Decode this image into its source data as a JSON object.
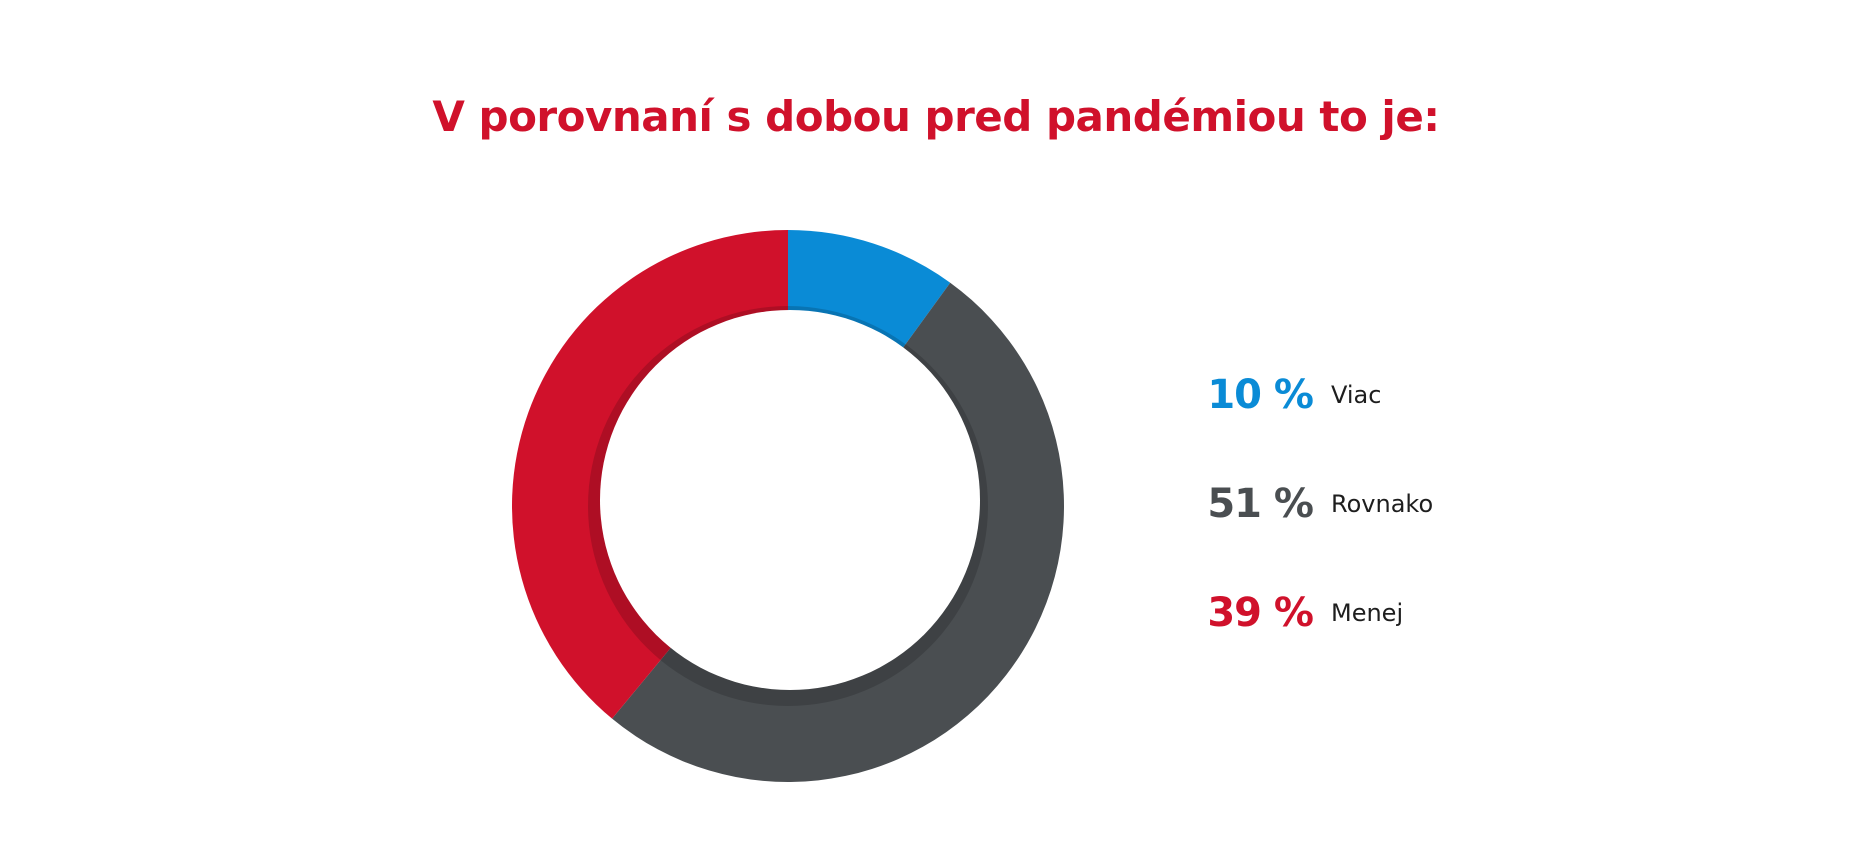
{
  "chart_data": {
    "type": "pie",
    "title": "V porovnaní s dobou pred pandémiou to je:",
    "categories": [
      "Viac",
      "Rovnako",
      "Menej"
    ],
    "values": [
      10,
      51,
      39
    ],
    "value_labels": [
      "10 %",
      "51 %",
      "39 %"
    ],
    "colors": [
      "#0a8bd6",
      "#4a4e51",
      "#d0112b"
    ],
    "donut": true,
    "legend_position": "right"
  }
}
